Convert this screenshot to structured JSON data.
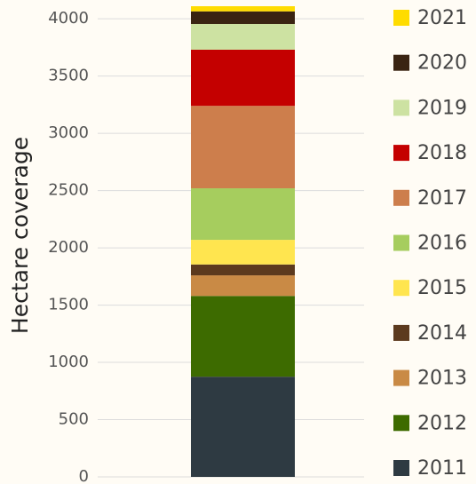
{
  "chart_data": {
    "type": "stacked_bar",
    "ylabel": "Hectare coverage",
    "categories": [
      null
    ],
    "series": [
      {
        "name": "2011",
        "color": "#2e3a42",
        "values": [
          875
        ]
      },
      {
        "name": "2012",
        "color": "#3d6b00",
        "values": [
          705
        ]
      },
      {
        "name": "2013",
        "color": "#c98a45",
        "values": [
          180
        ]
      },
      {
        "name": "2014",
        "color": "#5c3a1e",
        "values": [
          95
        ]
      },
      {
        "name": "2015",
        "color": "#ffe54f",
        "values": [
          215
        ]
      },
      {
        "name": "2016",
        "color": "#a6cd5e",
        "values": [
          450
        ]
      },
      {
        "name": "2017",
        "color": "#cd7e4c",
        "values": [
          720
        ]
      },
      {
        "name": "2018",
        "color": "#c40000",
        "values": [
          490
        ]
      },
      {
        "name": "2019",
        "color": "#cde2a2",
        "values": [
          225
        ]
      },
      {
        "name": "2020",
        "color": "#3a2412",
        "values": [
          110
        ]
      },
      {
        "name": "2021",
        "color": "#ffdc00",
        "values": [
          45
        ]
      }
    ],
    "ylim": [
      0,
      4110
    ],
    "yticks": [
      0,
      500,
      1000,
      1500,
      2000,
      2500,
      3000,
      3500,
      4000
    ],
    "grid": true,
    "legend": "right"
  }
}
